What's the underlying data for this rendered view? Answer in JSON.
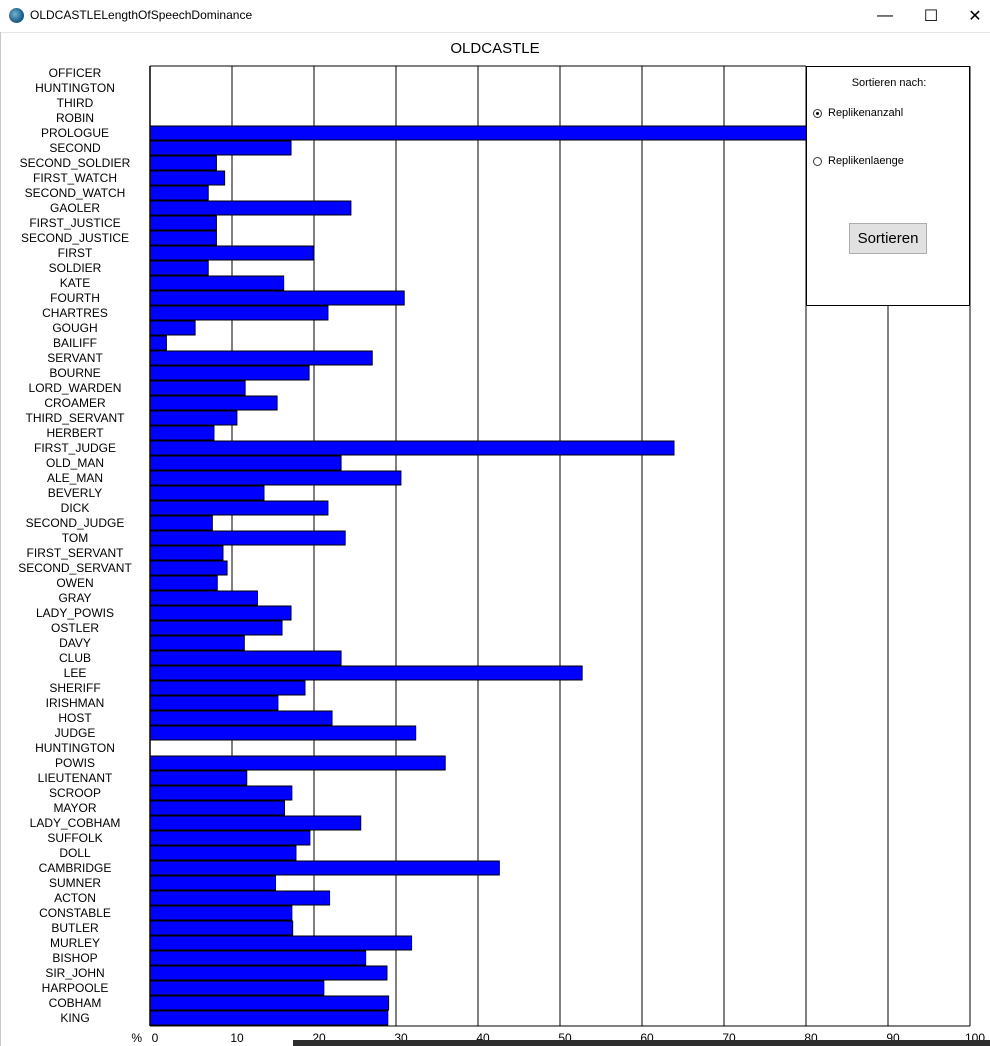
{
  "window": {
    "title": "OLDCASTLELengthOfSpeechDominance",
    "minimize_label": "—",
    "maximize_label": "☐",
    "close_label": "✕"
  },
  "controls": {
    "heading": "Sortieren nach:",
    "options": [
      {
        "label": "Replikenanzahl",
        "selected": true
      },
      {
        "label": "Replikenlaenge",
        "selected": false
      }
    ],
    "sort_button": "Sortieren"
  },
  "chart_data": {
    "type": "bar",
    "orientation": "horizontal",
    "title": "OLDCASTLE",
    "xlabel": "%",
    "ylabel": "",
    "xlim": [
      0,
      100
    ],
    "xticks": [
      0,
      10,
      20,
      30,
      40,
      50,
      60,
      70,
      80,
      90,
      100
    ],
    "grid": true,
    "bar_color": "#0000ff",
    "bar_edge_color": "#000000",
    "categories": [
      "OFFICER",
      "HUNTINGTON",
      "THIRD",
      "ROBIN",
      "PROLOGUE",
      "SECOND",
      "SECOND_SOLDIER",
      "FIRST_WATCH",
      "SECOND_WATCH",
      "GAOLER",
      "FIRST_JUSTICE",
      "SECOND_JUSTICE",
      "FIRST",
      "SOLDIER",
      "KATE",
      "FOURTH",
      "CHARTRES",
      "GOUGH",
      "BAILIFF",
      "SERVANT",
      "BOURNE",
      "LORD_WARDEN",
      "CROAMER",
      "THIRD_SERVANT",
      "HERBERT",
      "FIRST_JUDGE",
      "OLD_MAN",
      "ALE_MAN",
      "BEVERLY",
      "DICK",
      "SECOND_JUDGE",
      "TOM",
      "FIRST_SERVANT",
      "SECOND_SERVANT",
      "OWEN",
      "GRAY",
      "LADY_POWIS",
      "OSTLER",
      "DAVY",
      "CLUB",
      "LEE",
      "SHERIFF",
      "IRISHMAN",
      "HOST",
      "JUDGE",
      "HUNTINGTON",
      "POWIS",
      "LIEUTENANT",
      "SCROOP",
      "MAYOR",
      "LADY_COBHAM",
      "SUFFOLK",
      "DOLL",
      "CAMBRIDGE",
      "SUMNER",
      "ACTON",
      "CONSTABLE",
      "BUTLER",
      "MURLEY",
      "BISHOP",
      "SIR_JOHN",
      "HARPOOLE",
      "COBHAM",
      "KING"
    ],
    "values": [
      0,
      0,
      0,
      0,
      80,
      17.2,
      8.1,
      9.1,
      7.1,
      24.5,
      8.1,
      8.1,
      19.9,
      7.1,
      16.3,
      31,
      21.7,
      5.5,
      2,
      27.1,
      19.4,
      11.6,
      15.5,
      10.6,
      7.8,
      63.9,
      23.3,
      30.6,
      13.9,
      21.7,
      7.6,
      23.8,
      8.9,
      9.4,
      8.2,
      13.1,
      17.2,
      16.1,
      11.5,
      23.3,
      52.7,
      18.9,
      15.6,
      22.2,
      32.4,
      0,
      36,
      11.8,
      17.3,
      16.4,
      25.7,
      19.5,
      17.8,
      42.6,
      15.3,
      21.9,
      17.3,
      17.4,
      31.9,
      26.3,
      28.9,
      21.2,
      29.1,
      29
    ]
  }
}
